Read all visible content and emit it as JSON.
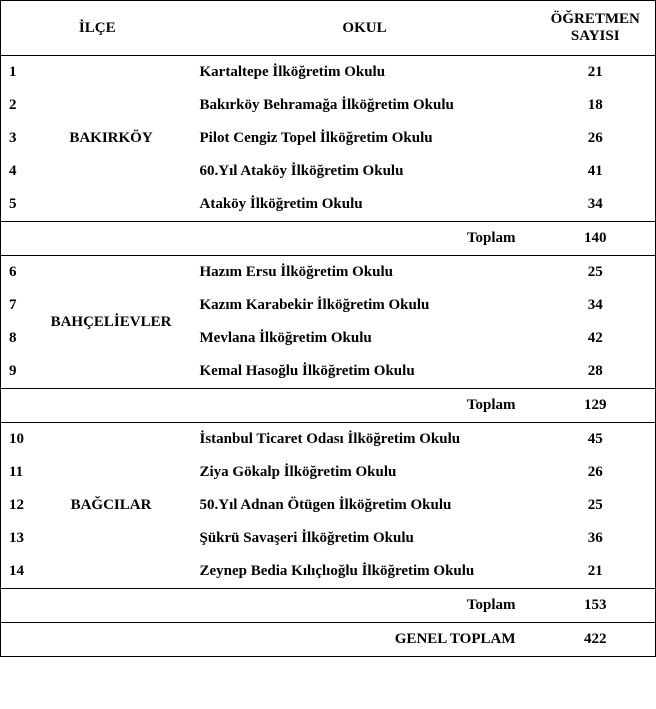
{
  "header": {
    "ilce": "İLÇE",
    "okul": "OKUL",
    "sayi_line1": "ÖĞRETMEN",
    "sayi_line2": "SAYISI"
  },
  "subtotal_label": "Toplam",
  "grand_label": "GENEL TOPLAM",
  "groups": [
    {
      "ilce": "BAKIRKÖY",
      "rows": [
        {
          "n": "1",
          "okul": "Kartaltepe İlköğretim Okulu",
          "cnt": "21"
        },
        {
          "n": "2",
          "okul": "Bakırköy Behramağa İlköğretim Okulu",
          "cnt": "18"
        },
        {
          "n": "3",
          "okul": "Pilot Cengiz Topel İlköğretim Okulu",
          "cnt": "26"
        },
        {
          "n": "4",
          "okul": "60.Yıl Ataköy İlköğretim Okulu",
          "cnt": "41"
        },
        {
          "n": "5",
          "okul": "Ataköy İlköğretim Okulu",
          "cnt": "34"
        }
      ],
      "subtotal": "140"
    },
    {
      "ilce": "BAHÇELİEVLER",
      "rows": [
        {
          "n": "6",
          "okul": "Hazım Ersu İlköğretim Okulu",
          "cnt": "25"
        },
        {
          "n": "7",
          "okul": "Kazım Karabekir İlköğretim Okulu",
          "cnt": "34"
        },
        {
          "n": "8",
          "okul": "Mevlana İlköğretim Okulu",
          "cnt": "42"
        },
        {
          "n": "9",
          "okul": "Kemal Hasoğlu İlköğretim Okulu",
          "cnt": "28"
        }
      ],
      "subtotal": "129"
    },
    {
      "ilce": "BAĞCILAR",
      "rows": [
        {
          "n": "10",
          "okul": "İstanbul Ticaret Odası İlköğretim Okulu",
          "cnt": "45"
        },
        {
          "n": "11",
          "okul": "Ziya Gökalp İlköğretim Okulu",
          "cnt": "26"
        },
        {
          "n": "12",
          "okul": "50.Yıl Adnan Ötügen İlköğretim Okulu",
          "cnt": "25"
        },
        {
          "n": "13",
          "okul": "Şükrü Savaşeri İlköğretim Okulu",
          "cnt": "36"
        },
        {
          "n": "14",
          "okul": "Zeynep Bedia Kılıçlıoğlu İlköğretim Okulu",
          "cnt": "21"
        }
      ],
      "subtotal": "153"
    }
  ],
  "grand_total": "422"
}
